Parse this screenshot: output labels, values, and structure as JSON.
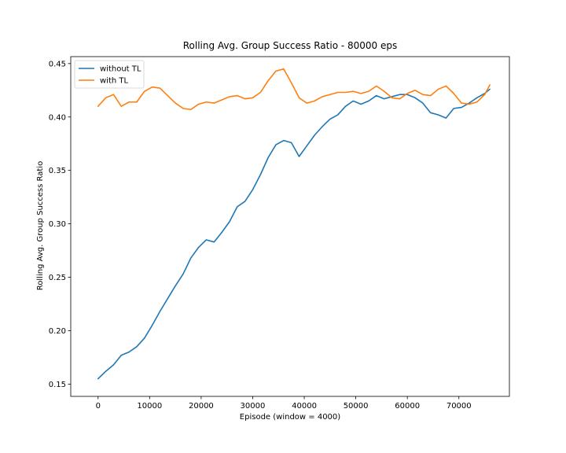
{
  "chart_data": {
    "type": "line",
    "title": "Rolling Avg. Group Success Ratio - 80000 eps",
    "xlabel": "Episode (window = 4000)",
    "ylabel": "Rolling Avg. Group Success Ratio",
    "xlim": [
      -5300,
      79800
    ],
    "ylim": [
      0.1385,
      0.4565
    ],
    "xticks": [
      0,
      10000,
      20000,
      30000,
      40000,
      50000,
      60000,
      70000
    ],
    "yticks": [
      0.15,
      0.2,
      0.25,
      0.3,
      0.35,
      0.4,
      0.45
    ],
    "ytick_labels": [
      "0.15",
      "0.20",
      "0.25",
      "0.30",
      "0.35",
      "0.40",
      "0.45"
    ],
    "legend_position": "top-left",
    "series": [
      {
        "name": "without TL",
        "color": "#1f77b4",
        "x": [
          0,
          1500,
          3000,
          4500,
          6000,
          7500,
          9000,
          10500,
          12000,
          13500,
          15000,
          16500,
          18000,
          19500,
          21000,
          22500,
          24000,
          25500,
          27000,
          28500,
          30000,
          31500,
          33000,
          34500,
          36000,
          37500,
          39000,
          40500,
          42000,
          43500,
          45000,
          46500,
          48000,
          49500,
          51000,
          52500,
          54000,
          55500,
          57000,
          58500,
          60000,
          61500,
          63000,
          64500,
          66000,
          67500,
          69000,
          70500,
          72000,
          73500,
          75000,
          76000
        ],
        "y": [
          0.155,
          0.162,
          0.168,
          0.177,
          0.18,
          0.185,
          0.193,
          0.205,
          0.218,
          0.23,
          0.242,
          0.253,
          0.268,
          0.278,
          0.285,
          0.283,
          0.292,
          0.302,
          0.316,
          0.321,
          0.332,
          0.346,
          0.362,
          0.374,
          0.378,
          0.376,
          0.363,
          0.373,
          0.383,
          0.391,
          0.398,
          0.402,
          0.41,
          0.415,
          0.412,
          0.415,
          0.42,
          0.417,
          0.419,
          0.421,
          0.421,
          0.418,
          0.413,
          0.404,
          0.402,
          0.399,
          0.408,
          0.409,
          0.413,
          0.418,
          0.422,
          0.426
        ]
      },
      {
        "name": "with TL",
        "color": "#ff7f0e",
        "x": [
          0,
          1500,
          3000,
          4500,
          6000,
          7500,
          9000,
          10500,
          12000,
          13500,
          15000,
          16500,
          18000,
          19500,
          21000,
          22500,
          24000,
          25500,
          27000,
          28500,
          30000,
          31500,
          33000,
          34500,
          36000,
          37500,
          39000,
          40500,
          42000,
          43500,
          45000,
          46500,
          48000,
          49500,
          51000,
          52500,
          54000,
          55500,
          57000,
          58500,
          60000,
          61500,
          63000,
          64500,
          66000,
          67500,
          69000,
          70500,
          72000,
          73500,
          75000,
          76000
        ],
        "y": [
          0.41,
          0.418,
          0.421,
          0.41,
          0.414,
          0.414,
          0.424,
          0.428,
          0.427,
          0.42,
          0.413,
          0.408,
          0.407,
          0.412,
          0.414,
          0.413,
          0.416,
          0.419,
          0.42,
          0.417,
          0.418,
          0.423,
          0.434,
          0.443,
          0.445,
          0.432,
          0.418,
          0.413,
          0.415,
          0.419,
          0.421,
          0.423,
          0.423,
          0.424,
          0.422,
          0.424,
          0.429,
          0.424,
          0.418,
          0.417,
          0.422,
          0.425,
          0.421,
          0.42,
          0.426,
          0.429,
          0.422,
          0.413,
          0.412,
          0.414,
          0.421,
          0.43
        ]
      }
    ]
  }
}
